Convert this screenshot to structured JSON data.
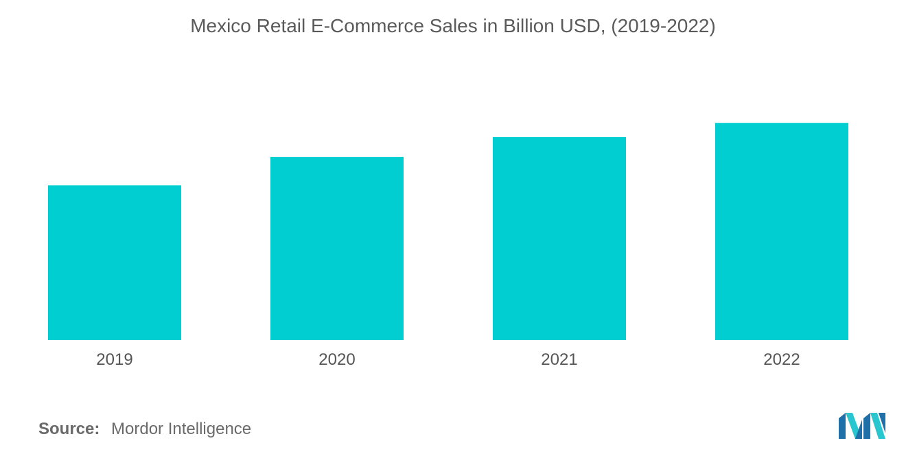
{
  "chart_data": {
    "type": "bar",
    "title": "Mexico Retail E-Commerce Sales in Billion USD, (2019-2022)",
    "categories": [
      "2019",
      "2020",
      "2021",
      "2022"
    ],
    "values": [
      10.9,
      12.9,
      14.3,
      15.3
    ],
    "ylim": [
      0,
      17
    ],
    "xlabel": "",
    "ylabel": "",
    "grid": false,
    "bar_color": "#00ced1"
  },
  "source": {
    "label": "Source:",
    "value": "Mordor Intelligence"
  },
  "logo": {
    "icon": "mordor-intelligence-logo",
    "colors": [
      "#1f6fa8",
      "#29c6cf"
    ]
  }
}
